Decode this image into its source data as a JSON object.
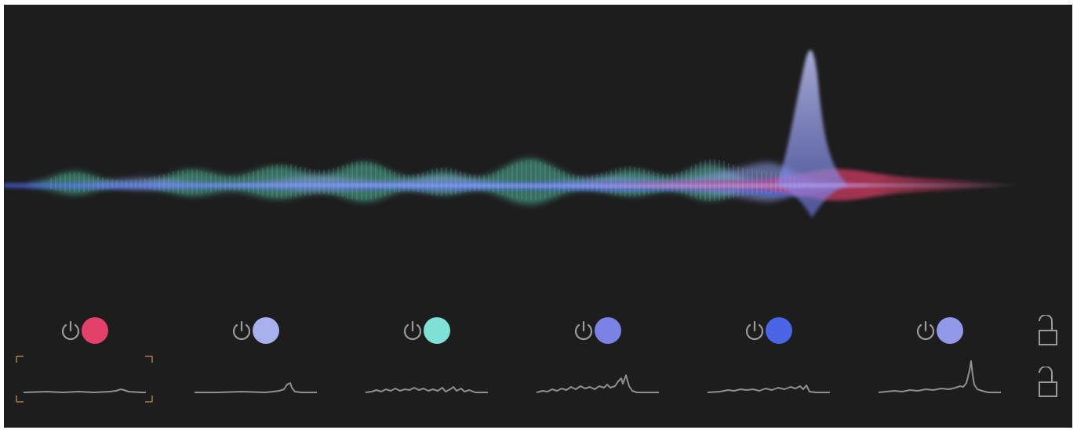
{
  "colors": {
    "panel_background": "#1d1d1e",
    "icon_gray": "#9a9a9a",
    "thumbnail_line": "#8f8f8f",
    "selection_bracket": "#a5843f"
  },
  "bands": [
    {
      "id": 1,
      "power_icon": "power-icon",
      "color": "#e5406a",
      "enabled": true,
      "selected": true
    },
    {
      "id": 2,
      "power_icon": "power-icon",
      "color": "#a9b0ee",
      "enabled": true,
      "selected": false
    },
    {
      "id": 3,
      "power_icon": "power-icon",
      "color": "#7fe0d6",
      "enabled": true,
      "selected": false
    },
    {
      "id": 4,
      "power_icon": "power-icon",
      "color": "#7b82e6",
      "enabled": true,
      "selected": false
    },
    {
      "id": 5,
      "power_icon": "power-icon",
      "color": "#4a66e6",
      "enabled": true,
      "selected": false
    },
    {
      "id": 6,
      "power_icon": "power-icon",
      "color": "#9199e8",
      "enabled": true,
      "selected": false
    }
  ],
  "locks": [
    {
      "icon": "unlocked-padlock-icon",
      "state": "unlocked"
    },
    {
      "icon": "unlocked-padlock-icon",
      "state": "unlocked"
    }
  ]
}
